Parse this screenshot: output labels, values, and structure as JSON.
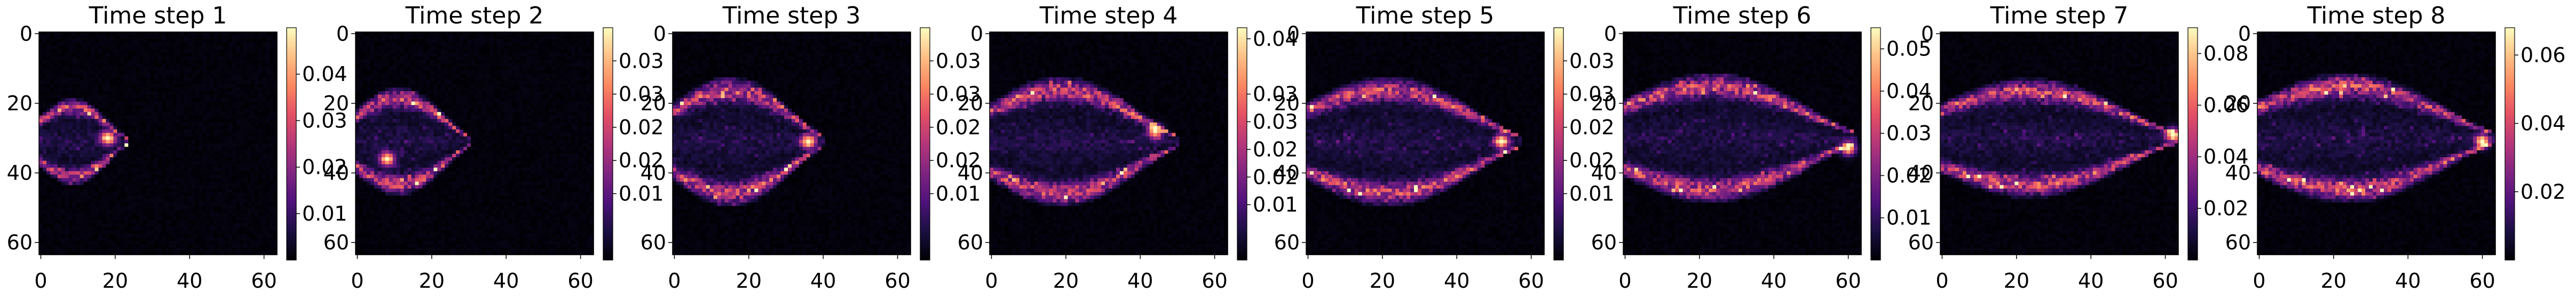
{
  "chart_data": [
    {
      "type": "heatmap",
      "title": "Time step 1",
      "x_ticks": [
        0,
        20,
        40,
        60
      ],
      "y_ticks": [
        0,
        20,
        40,
        60
      ],
      "grid_size": 64,
      "colormap": "magma",
      "colorbar": {
        "min": 0,
        "max": 0.05,
        "ticks": [
          "0.01",
          "0.02",
          "0.03",
          "0.04"
        ],
        "tick_values": [
          0.01,
          0.02,
          0.03,
          0.04
        ]
      },
      "shape": {
        "peak": 0.05,
        "x_range": [
          0,
          23
        ],
        "center_y": 31,
        "half_height": 8,
        "tail_x": 4,
        "hot_x": 18,
        "hot_y": 30
      },
      "grid": false
    },
    {
      "type": "heatmap",
      "title": "Time step 2",
      "x_ticks": [
        0,
        20,
        40,
        60
      ],
      "y_ticks": [
        0,
        20,
        40,
        60
      ],
      "grid_size": 64,
      "colormap": "magma",
      "colorbar": {
        "min": 0,
        "max": 0.035,
        "ticks": [
          "0.01",
          "0.02",
          "0.02",
          "0.03",
          "0.03"
        ],
        "tick_values": [
          0.01,
          0.015,
          0.02,
          0.025,
          0.03
        ]
      },
      "shape": {
        "peak": 0.035,
        "x_range": [
          0,
          30
        ],
        "center_y": 31,
        "half_height": 10,
        "tail_x": 6,
        "hot_x": 8,
        "hot_y": 36
      },
      "grid": false
    },
    {
      "type": "heatmap",
      "title": "Time step 3",
      "x_ticks": [
        0,
        20,
        40,
        60
      ],
      "y_ticks": [
        0,
        20,
        40,
        60
      ],
      "grid_size": 64,
      "colormap": "magma",
      "colorbar": {
        "min": 0,
        "max": 0.035,
        "ticks": [
          "0.01",
          "0.02",
          "0.02",
          "0.03",
          "0.03"
        ],
        "tick_values": [
          0.01,
          0.015,
          0.02,
          0.025,
          0.03
        ]
      },
      "shape": {
        "peak": 0.035,
        "x_range": [
          0,
          40
        ],
        "center_y": 31,
        "half_height": 12,
        "tail_x": 8,
        "hot_x": 36,
        "hot_y": 31
      },
      "grid": false
    },
    {
      "type": "heatmap",
      "title": "Time step 4",
      "x_ticks": [
        0,
        20,
        40,
        60
      ],
      "y_ticks": [
        0,
        20,
        40,
        60
      ],
      "grid_size": 64,
      "colormap": "magma",
      "colorbar": {
        "min": 0,
        "max": 0.042,
        "ticks": [
          "0.01",
          "0.02",
          "0.02",
          "0.03",
          "0.03",
          "0.04"
        ],
        "tick_values": [
          0.01,
          0.015,
          0.02,
          0.025,
          0.03,
          0.04
        ]
      },
      "shape": {
        "peak": 0.042,
        "x_range": [
          0,
          50
        ],
        "center_y": 31,
        "half_height": 12,
        "tail_x": 10,
        "hot_x": 44,
        "hot_y": 28
      },
      "grid": false
    },
    {
      "type": "heatmap",
      "title": "Time step 5",
      "x_ticks": [
        0,
        20,
        40,
        60
      ],
      "y_ticks": [
        0,
        20,
        40,
        60
      ],
      "grid_size": 64,
      "colormap": "magma",
      "colorbar": {
        "min": 0,
        "max": 0.035,
        "ticks": [
          "0.01",
          "0.02",
          "0.02",
          "0.03",
          "0.03"
        ],
        "tick_values": [
          0.01,
          0.015,
          0.02,
          0.025,
          0.03
        ]
      },
      "shape": {
        "peak": 0.035,
        "x_range": [
          0,
          57
        ],
        "center_y": 31,
        "half_height": 12,
        "tail_x": 12,
        "hot_x": 52,
        "hot_y": 31
      },
      "grid": false
    },
    {
      "type": "heatmap",
      "title": "Time step 6",
      "x_ticks": [
        0,
        20,
        40,
        60
      ],
      "y_ticks": [
        0,
        20,
        40,
        60
      ],
      "grid_size": 64,
      "colormap": "magma",
      "colorbar": {
        "min": 0,
        "max": 0.055,
        "ticks": [
          "0.01",
          "0.02",
          "0.03",
          "0.04",
          "0.05"
        ],
        "tick_values": [
          0.01,
          0.02,
          0.03,
          0.04,
          0.05
        ]
      },
      "shape": {
        "peak": 0.055,
        "x_range": [
          0,
          62
        ],
        "center_y": 30,
        "half_height": 12,
        "tail_x": 14,
        "hot_x": 60,
        "hot_y": 33
      },
      "grid": false
    },
    {
      "type": "heatmap",
      "title": "Time step 7",
      "x_ticks": [
        0,
        20,
        40,
        60
      ],
      "y_ticks": [
        0,
        20,
        40,
        60
      ],
      "grid_size": 64,
      "colormap": "magma",
      "colorbar": {
        "min": 0,
        "max": 0.09,
        "ticks": [
          "0.02",
          "0.04",
          "0.06",
          "0.08"
        ],
        "tick_values": [
          0.02,
          0.04,
          0.06,
          0.08
        ]
      },
      "shape": {
        "peak": 0.09,
        "x_range": [
          0,
          63
        ],
        "center_y": 30,
        "half_height": 11,
        "tail_x": 16,
        "hot_x": 62,
        "hot_y": 29
      },
      "grid": false
    },
    {
      "type": "heatmap",
      "title": "Time step 8",
      "x_ticks": [
        0,
        20,
        40,
        60
      ],
      "y_ticks": [
        0,
        20,
        40,
        60
      ],
      "grid_size": 64,
      "colormap": "magma",
      "colorbar": {
        "min": 0,
        "max": 0.068,
        "ticks": [
          "0.02",
          "0.04",
          "0.06"
        ],
        "tick_values": [
          0.02,
          0.04,
          0.06
        ]
      },
      "shape": {
        "peak": 0.068,
        "x_range": [
          0,
          63
        ],
        "center_y": 30,
        "half_height": 12,
        "tail_x": 18,
        "hot_x": 60,
        "hot_y": 31
      },
      "grid": false
    }
  ]
}
